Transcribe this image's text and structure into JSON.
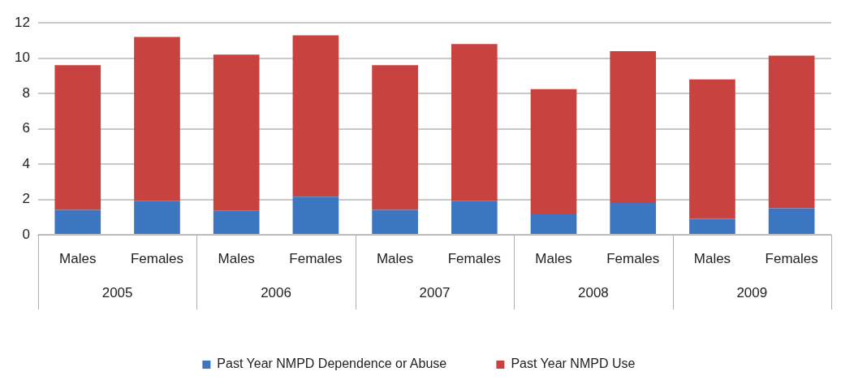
{
  "chart_data": {
    "type": "bar",
    "stacked": true,
    "categories": [
      "Males",
      "Females",
      "Males",
      "Females",
      "Males",
      "Females",
      "Males",
      "Females",
      "Males",
      "Females"
    ],
    "series": [
      {
        "name": "Past Year NMPD Dependence or Abuse",
        "color": "#3d76c0",
        "values": [
          1.4,
          1.9,
          1.35,
          2.15,
          1.4,
          1.9,
          1.2,
          1.8,
          0.9,
          1.5
        ]
      },
      {
        "name": "Past Year NMPD Use",
        "color": "#c84240",
        "values": [
          8.2,
          9.3,
          8.85,
          9.15,
          8.2,
          8.9,
          7.05,
          8.6,
          7.9,
          8.65
        ]
      }
    ],
    "annotations": [
      "2005",
      "2006",
      "2007",
      "2008",
      "2009"
    ],
    "ylim": [
      0,
      12
    ],
    "yticks": [
      0,
      2,
      4,
      6,
      8,
      10,
      12
    ],
    "grid": "y",
    "legend": "bottom"
  }
}
